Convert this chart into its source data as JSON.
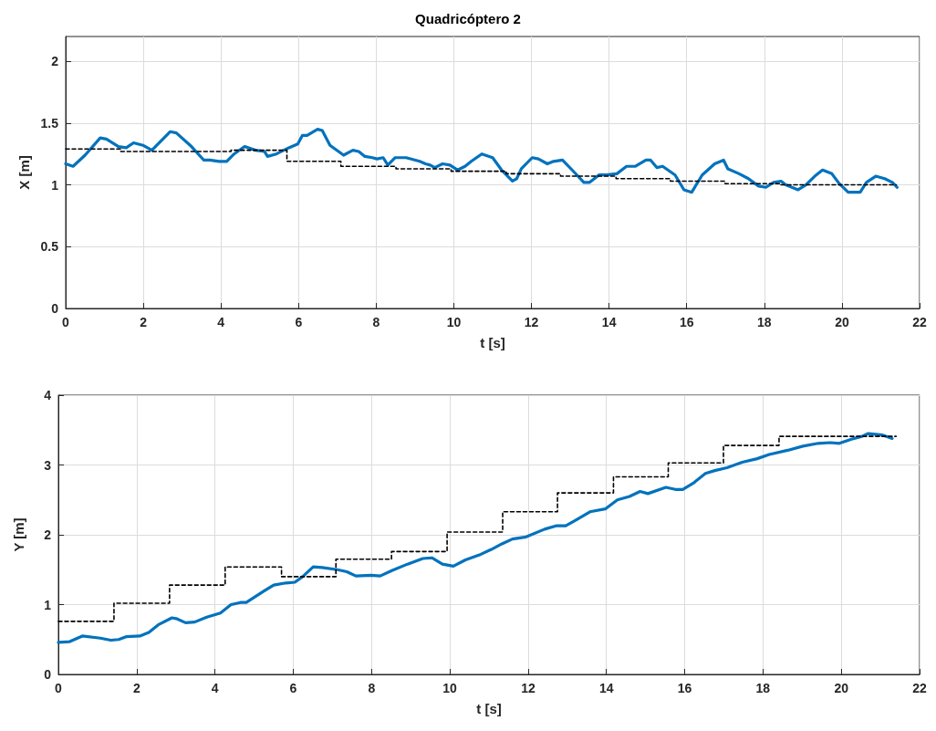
{
  "chart_data": [
    {
      "type": "line",
      "title": "Quadricóptero 2",
      "xlabel": "t [s]",
      "ylabel": "X [m]",
      "xlim": [
        0,
        22
      ],
      "xticks": [
        0,
        2,
        4,
        6,
        8,
        10,
        12,
        14,
        16,
        18,
        20,
        22
      ],
      "ylim": [
        0,
        2.2
      ],
      "yticks": [
        0,
        0.5,
        1,
        1.5,
        2
      ],
      "grid": true,
      "marker": "none",
      "series": [
        {
          "type": "step",
          "color": "#000000",
          "line_style": "dashed",
          "x": [
            0,
            1.42,
            2.84,
            4.26,
            5.7,
            7.09,
            8.51,
            9.93,
            11.35,
            12.75,
            14.18,
            15.58,
            16.99,
            18.41,
            21.4
          ],
          "values": [
            1.29,
            1.27,
            1.27,
            1.28,
            1.19,
            1.15,
            1.13,
            1.11,
            1.09,
            1.07,
            1.05,
            1.03,
            1.01,
            1.0,
            1.0
          ]
        },
        {
          "color": "#0072bd",
          "line_style": "solid",
          "x": [
            0,
            0.19,
            0.5,
            0.89,
            1.05,
            1.36,
            1.56,
            1.75,
            1.99,
            2.22,
            2.69,
            2.85,
            3.24,
            3.56,
            3.71,
            3.95,
            4.15,
            4.34,
            4.61,
            4.89,
            5.12,
            5.2,
            5.43,
            5.75,
            5.98,
            6.1,
            6.22,
            6.49,
            6.61,
            6.81,
            7.16,
            7.4,
            7.55,
            7.71,
            7.9,
            8.02,
            8.18,
            8.3,
            8.49,
            8.77,
            9.12,
            9.27,
            9.39,
            9.51,
            9.71,
            9.9,
            10.1,
            10.29,
            10.45,
            10.72,
            11.0,
            11.23,
            11.51,
            11.62,
            11.74,
            12.02,
            12.18,
            12.41,
            12.57,
            12.8,
            13.11,
            13.35,
            13.5,
            13.74,
            13.93,
            14.2,
            14.45,
            14.68,
            14.95,
            15.07,
            15.23,
            15.38,
            15.7,
            15.93,
            16.13,
            16.4,
            16.72,
            16.95,
            17.06,
            17.35,
            17.59,
            17.85,
            18.04,
            18.24,
            18.43,
            18.55,
            18.87,
            19.07,
            19.3,
            19.5,
            19.74,
            19.93,
            20.16,
            20.47,
            20.63,
            20.87,
            21.1,
            21.3,
            21.42
          ],
          "values": [
            1.17,
            1.15,
            1.24,
            1.38,
            1.37,
            1.31,
            1.3,
            1.34,
            1.32,
            1.28,
            1.43,
            1.42,
            1.31,
            1.2,
            1.2,
            1.19,
            1.19,
            1.25,
            1.31,
            1.28,
            1.27,
            1.23,
            1.25,
            1.3,
            1.33,
            1.4,
            1.4,
            1.45,
            1.44,
            1.32,
            1.24,
            1.28,
            1.27,
            1.23,
            1.22,
            1.21,
            1.22,
            1.16,
            1.22,
            1.22,
            1.19,
            1.17,
            1.16,
            1.14,
            1.17,
            1.16,
            1.12,
            1.15,
            1.19,
            1.25,
            1.22,
            1.12,
            1.03,
            1.05,
            1.13,
            1.22,
            1.21,
            1.17,
            1.19,
            1.2,
            1.1,
            1.02,
            1.02,
            1.08,
            1.08,
            1.09,
            1.15,
            1.15,
            1.2,
            1.2,
            1.14,
            1.15,
            1.08,
            0.96,
            0.94,
            1.08,
            1.17,
            1.2,
            1.13,
            1.09,
            1.05,
            0.99,
            0.98,
            1.02,
            1.03,
            1.0,
            0.96,
            1.0,
            1.07,
            1.12,
            1.09,
            1.01,
            0.94,
            0.94,
            1.02,
            1.07,
            1.05,
            1.02,
            0.98
          ]
        }
      ]
    },
    {
      "type": "line",
      "xlabel": "t [s]",
      "ylabel": "Y [m]",
      "xlim": [
        0,
        22
      ],
      "xticks": [
        0,
        2,
        4,
        6,
        8,
        10,
        12,
        14,
        16,
        18,
        20,
        22
      ],
      "ylim": [
        0,
        4
      ],
      "yticks": [
        0,
        1,
        2,
        3,
        4
      ],
      "grid": true,
      "marker": "none",
      "series": [
        {
          "type": "step",
          "color": "#000000",
          "line_style": "dashed",
          "x": [
            0,
            1.42,
            2.84,
            4.26,
            5.7,
            7.09,
            8.51,
            9.93,
            11.35,
            12.75,
            14.18,
            15.58,
            16.99,
            18.41,
            21.4
          ],
          "values": [
            0.76,
            1.02,
            1.28,
            1.54,
            1.4,
            1.65,
            1.76,
            2.04,
            2.33,
            2.6,
            2.83,
            3.03,
            3.28,
            3.41,
            3.41
          ]
        },
        {
          "color": "#0072bd",
          "line_style": "solid",
          "x": [
            0,
            0.29,
            0.61,
            1.07,
            1.34,
            1.54,
            1.73,
            2.08,
            2.31,
            2.55,
            2.9,
            3.01,
            3.25,
            3.48,
            3.79,
            4.14,
            4.41,
            4.65,
            4.8,
            5.27,
            5.5,
            5.81,
            6.04,
            6.24,
            6.51,
            6.74,
            7.13,
            7.37,
            7.6,
            7.99,
            8.22,
            8.53,
            8.92,
            9.31,
            9.54,
            9.81,
            10.09,
            10.4,
            10.79,
            11.06,
            11.33,
            11.6,
            11.95,
            12.42,
            12.73,
            12.96,
            13.19,
            13.58,
            13.97,
            14.28,
            14.59,
            14.86,
            15.06,
            15.52,
            15.76,
            15.95,
            16.22,
            16.53,
            16.77,
            17.08,
            17.47,
            17.85,
            18.16,
            18.63,
            19.02,
            19.41,
            19.72,
            19.95,
            20.26,
            20.53,
            20.69,
            21.04,
            21.3
          ],
          "values": [
            0.46,
            0.47,
            0.55,
            0.52,
            0.49,
            0.5,
            0.54,
            0.55,
            0.6,
            0.71,
            0.81,
            0.8,
            0.74,
            0.75,
            0.82,
            0.88,
            1.0,
            1.03,
            1.03,
            1.2,
            1.28,
            1.31,
            1.32,
            1.4,
            1.54,
            1.53,
            1.5,
            1.47,
            1.41,
            1.42,
            1.41,
            1.49,
            1.58,
            1.66,
            1.67,
            1.58,
            1.55,
            1.64,
            1.72,
            1.79,
            1.87,
            1.94,
            1.97,
            2.08,
            2.13,
            2.13,
            2.2,
            2.33,
            2.37,
            2.5,
            2.55,
            2.62,
            2.59,
            2.68,
            2.65,
            2.65,
            2.74,
            2.88,
            2.92,
            2.96,
            3.04,
            3.09,
            3.15,
            3.21,
            3.27,
            3.31,
            3.32,
            3.31,
            3.37,
            3.41,
            3.45,
            3.43,
            3.38
          ]
        }
      ]
    }
  ]
}
